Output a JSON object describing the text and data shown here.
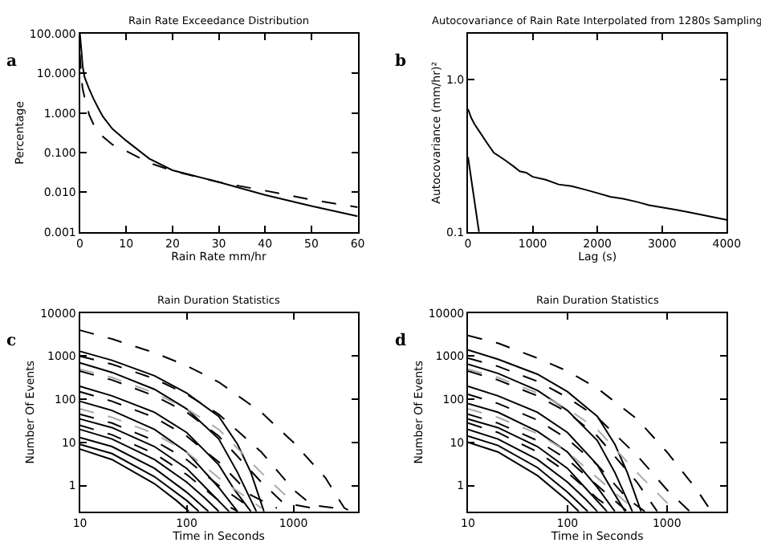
{
  "chart_data": [
    {
      "type": "line",
      "title": "Rain Rate Exceedance Distribution",
      "xlabel": "Rain Rate mm/hr",
      "ylabel": "Percentage",
      "annotations": [
        "a"
      ],
      "log": "y",
      "xlim": [
        0,
        60
      ],
      "xticks": [
        0,
        10,
        20,
        30,
        40,
        50,
        60
      ],
      "ylim": [
        0.001,
        100
      ],
      "yticks": [
        {
          "value": 0.001,
          "label": "0.001"
        },
        {
          "value": 0.01,
          "label": "0.010"
        },
        {
          "value": 0.1,
          "label": "0.100"
        },
        {
          "value": 1,
          "label": "1.000"
        },
        {
          "value": 10,
          "label": "10.000"
        },
        {
          "value": 100,
          "label": "100.000"
        }
      ],
      "series": [
        {
          "color": "#000000",
          "line_style": "solid",
          "x": [
            0,
            0.3,
            0.6,
            1,
            2,
            3,
            4,
            5,
            7,
            10,
            15,
            20,
            30,
            40,
            50,
            60
          ],
          "values": [
            100,
            40,
            15,
            8,
            4,
            2.2,
            1.3,
            0.8,
            0.4,
            0.2,
            0.07,
            0.036,
            0.018,
            0.0086,
            0.0045,
            0.0025
          ]
        },
        {
          "color": "#000000",
          "line_style": "dashed",
          "x": [
            0,
            0.3,
            0.6,
            1,
            2,
            3,
            5,
            7,
            10,
            15,
            20,
            30,
            40,
            50,
            60
          ],
          "values": [
            30,
            8,
            4,
            2.5,
            0.9,
            0.5,
            0.25,
            0.16,
            0.11,
            0.055,
            0.035,
            0.018,
            0.011,
            0.0065,
            0.0042
          ]
        }
      ]
    },
    {
      "type": "line",
      "title": "Autocovariance of Rain Rate Interpolated from 1280s Sampling",
      "xlabel": "Lag (s)",
      "ylabel": "Autocovariance (mm/hr)²",
      "annotations": [
        "b"
      ],
      "log": "y",
      "xlim": [
        0,
        4000
      ],
      "xticks": [
        0,
        1000,
        2000,
        3000,
        4000
      ],
      "ylim": [
        0.1,
        2
      ],
      "yticks": [
        0.1,
        {
          "value": 1,
          "label": "1.0"
        }
      ],
      "series": [
        {
          "color": "#000000",
          "line_style": "solid",
          "x": [
            0,
            50,
            100,
            200,
            300,
            400,
            500,
            600,
            700,
            800,
            900,
            1000,
            1200,
            1400,
            1600,
            1800,
            2000,
            2200,
            2400,
            2600,
            2800,
            3000,
            3200,
            3400,
            3600,
            3800,
            4000
          ],
          "values": [
            0.64,
            0.56,
            0.51,
            0.44,
            0.38,
            0.33,
            0.31,
            0.29,
            0.27,
            0.25,
            0.245,
            0.23,
            0.22,
            0.205,
            0.2,
            0.19,
            0.18,
            0.17,
            0.165,
            0.158,
            0.15,
            0.145,
            0.14,
            0.135,
            0.13,
            0.125,
            0.12
          ]
        },
        {
          "color": "#000000",
          "line_style": "solid",
          "x": [
            0,
            170
          ],
          "values": [
            0.31,
            0.1
          ]
        }
      ]
    },
    {
      "type": "line",
      "title": "Rain Duration Statistics",
      "xlabel": "Time in Seconds",
      "ylabel": "Number Of Events",
      "annotations": [
        "c"
      ],
      "log": "xy",
      "xlim": [
        10,
        4000
      ],
      "xticks": [
        10,
        100,
        1000
      ],
      "ylim": [
        0.25,
        10000
      ],
      "yticks": [
        1,
        10,
        100,
        1000,
        10000
      ],
      "series": [
        {
          "color": "#000000",
          "line_style": "solid",
          "x": [
            10,
            20,
            50,
            100,
            200,
            300,
            400,
            530
          ],
          "values": [
            1300,
            800,
            350,
            140,
            40,
            9,
            2,
            0.25
          ]
        },
        {
          "color": "#000000",
          "line_style": "solid",
          "x": [
            10,
            20,
            50,
            100,
            200,
            300,
            450
          ],
          "values": [
            700,
            420,
            170,
            60,
            12,
            2,
            0.25
          ]
        },
        {
          "color": "#000000",
          "line_style": "solid",
          "x": [
            10,
            20,
            50,
            100,
            200,
            280,
            400
          ],
          "values": [
            200,
            120,
            50,
            17,
            3,
            0.8,
            0.25
          ]
        },
        {
          "color": "#000000",
          "line_style": "solid",
          "x": [
            10,
            20,
            50,
            100,
            200,
            300
          ],
          "values": [
            90,
            55,
            20,
            6,
            0.9,
            0.25
          ]
        },
        {
          "color": "#000000",
          "line_style": "solid",
          "x": [
            10,
            20,
            50,
            100,
            150,
            250
          ],
          "values": [
            35,
            22,
            8,
            2.5,
            0.9,
            0.25
          ]
        },
        {
          "color": "#000000",
          "line_style": "solid",
          "x": [
            10,
            20,
            50,
            100,
            150,
            200
          ],
          "values": [
            20,
            12,
            4,
            1.2,
            0.5,
            0.25
          ]
        },
        {
          "color": "#000000",
          "line_style": "solid",
          "x": [
            10,
            20,
            50,
            100,
            160
          ],
          "values": [
            13,
            8,
            2.5,
            0.7,
            0.25
          ]
        },
        {
          "color": "#000000",
          "line_style": "solid",
          "x": [
            10,
            20,
            50,
            100,
            130
          ],
          "values": [
            9,
            5.5,
            1.6,
            0.45,
            0.25
          ]
        },
        {
          "color": "#000000",
          "line_style": "solid",
          "x": [
            10,
            20,
            50,
            80,
            105
          ],
          "values": [
            7,
            4,
            1.1,
            0.45,
            0.25
          ]
        },
        {
          "color": "#000000",
          "line_style": "dashed",
          "x": [
            10,
            20,
            50,
            100,
            200,
            500,
            1000,
            2000,
            3000,
            3500
          ],
          "values": [
            4000,
            2500,
            1200,
            600,
            250,
            50,
            10,
            1.5,
            0.3,
            0.25
          ]
        },
        {
          "color": "#000000",
          "line_style": "dashed",
          "x": [
            10,
            20,
            50,
            100,
            200,
            500,
            1000,
            1500,
            2500
          ],
          "values": [
            1000,
            650,
            300,
            130,
            45,
            6,
            0.8,
            0.35,
            0.3
          ]
        },
        {
          "color": "#000000",
          "line_style": "dashed",
          "x": [
            10,
            20,
            50,
            100,
            200,
            500,
            800,
            1500
          ],
          "values": [
            450,
            280,
            120,
            50,
            14,
            1.2,
            0.4,
            0.3
          ]
        },
        {
          "color": "#000000",
          "line_style": "dashed",
          "x": [
            10,
            20,
            50,
            100,
            200,
            400,
            700
          ],
          "values": [
            150,
            90,
            38,
            14,
            3.5,
            0.6,
            0.3
          ]
        },
        {
          "color": "#000000",
          "line_style": "dashed",
          "x": [
            10,
            20,
            50,
            100,
            200,
            400
          ],
          "values": [
            45,
            28,
            11,
            4,
            1,
            0.3
          ]
        },
        {
          "color": "#000000",
          "line_style": "dashed",
          "x": [
            10,
            20,
            50,
            100,
            200,
            300
          ],
          "values": [
            25,
            15,
            5.5,
            1.8,
            0.45,
            0.25
          ]
        },
        {
          "color": "#aaaaaa",
          "line_style": "dashed",
          "x": [
            10,
            20,
            50,
            100,
            200,
            500,
            1000
          ],
          "values": [
            500,
            320,
            140,
            60,
            20,
            2,
            0.4
          ]
        },
        {
          "color": "#aaaaaa",
          "line_style": "dashed",
          "x": [
            10,
            20,
            50,
            100,
            200,
            500
          ],
          "values": [
            60,
            38,
            16,
            6,
            1.5,
            0.3
          ]
        }
      ]
    },
    {
      "type": "line",
      "title": "Rain Duration Statistics",
      "xlabel": "Time in Seconds",
      "ylabel": "Number Of Events",
      "annotations": [
        "d"
      ],
      "log": "xy",
      "xlim": [
        10,
        4000
      ],
      "xticks": [
        10,
        100,
        1000
      ],
      "ylim": [
        0.25,
        10000
      ],
      "yticks": [
        1,
        10,
        100,
        1000,
        10000
      ],
      "series": [
        {
          "color": "#000000",
          "line_style": "solid",
          "x": [
            10,
            20,
            50,
            100,
            200,
            300,
            400,
            550
          ],
          "values": [
            1400,
            850,
            380,
            150,
            40,
            9,
            2,
            0.25
          ]
        },
        {
          "color": "#000000",
          "line_style": "solid",
          "x": [
            10,
            20,
            50,
            100,
            200,
            300,
            450
          ],
          "values": [
            650,
            400,
            160,
            55,
            11,
            2,
            0.25
          ]
        },
        {
          "color": "#000000",
          "line_style": "solid",
          "x": [
            10,
            20,
            50,
            100,
            200,
            280,
            380
          ],
          "values": [
            200,
            120,
            50,
            17,
            3,
            0.8,
            0.25
          ]
        },
        {
          "color": "#000000",
          "line_style": "solid",
          "x": [
            10,
            20,
            50,
            100,
            200,
            300
          ],
          "values": [
            80,
            50,
            18,
            6,
            0.9,
            0.25
          ]
        },
        {
          "color": "#000000",
          "line_style": "solid",
          "x": [
            10,
            20,
            50,
            100,
            150,
            250
          ],
          "values": [
            35,
            22,
            8,
            2.5,
            0.9,
            0.25
          ]
        },
        {
          "color": "#000000",
          "line_style": "solid",
          "x": [
            10,
            20,
            50,
            100,
            150,
            200
          ],
          "values": [
            20,
            12,
            4,
            1.2,
            0.5,
            0.25
          ]
        },
        {
          "color": "#000000",
          "line_style": "solid",
          "x": [
            10,
            20,
            50,
            100,
            160
          ],
          "values": [
            14,
            8.5,
            2.6,
            0.7,
            0.25
          ]
        },
        {
          "color": "#000000",
          "line_style": "solid",
          "x": [
            10,
            20,
            50,
            100,
            130
          ],
          "values": [
            10,
            6,
            1.7,
            0.45,
            0.25
          ]
        },
        {
          "color": "#000000",
          "line_style": "dashed",
          "x": [
            10,
            20,
            50,
            100,
            200,
            500,
            1000,
            2000,
            2800
          ],
          "values": [
            3000,
            2000,
            900,
            450,
            180,
            35,
            6,
            0.8,
            0.25
          ]
        },
        {
          "color": "#000000",
          "line_style": "dashed",
          "x": [
            10,
            20,
            50,
            100,
            200,
            500,
            1000,
            1700
          ],
          "values": [
            900,
            580,
            260,
            110,
            38,
            5,
            0.8,
            0.25
          ]
        },
        {
          "color": "#000000",
          "line_style": "dashed",
          "x": [
            10,
            20,
            50,
            100,
            200,
            500,
            800
          ],
          "values": [
            450,
            280,
            120,
            50,
            14,
            1.2,
            0.25
          ]
        },
        {
          "color": "#000000",
          "line_style": "dashed",
          "x": [
            10,
            20,
            50,
            100,
            200,
            400,
            600
          ],
          "values": [
            130,
            80,
            33,
            12,
            3,
            0.5,
            0.25
          ]
        },
        {
          "color": "#000000",
          "line_style": "dashed",
          "x": [
            10,
            20,
            50,
            100,
            200,
            400
          ],
          "values": [
            45,
            28,
            11,
            4,
            1,
            0.25
          ]
        },
        {
          "color": "#000000",
          "line_style": "dashed",
          "x": [
            10,
            20,
            50,
            100,
            200,
            300
          ],
          "values": [
            28,
            17,
            6,
            2,
            0.5,
            0.25
          ]
        },
        {
          "color": "#aaaaaa",
          "line_style": "dashed",
          "x": [
            10,
            20,
            50,
            100,
            200,
            500,
            1000,
            1300
          ],
          "values": [
            500,
            320,
            140,
            60,
            20,
            2,
            0.4,
            0.25
          ]
        },
        {
          "color": "#aaaaaa",
          "line_style": "dashed",
          "x": [
            10,
            20,
            50,
            100,
            200,
            500
          ],
          "values": [
            60,
            38,
            16,
            6,
            1.5,
            0.25
          ]
        }
      ]
    }
  ]
}
